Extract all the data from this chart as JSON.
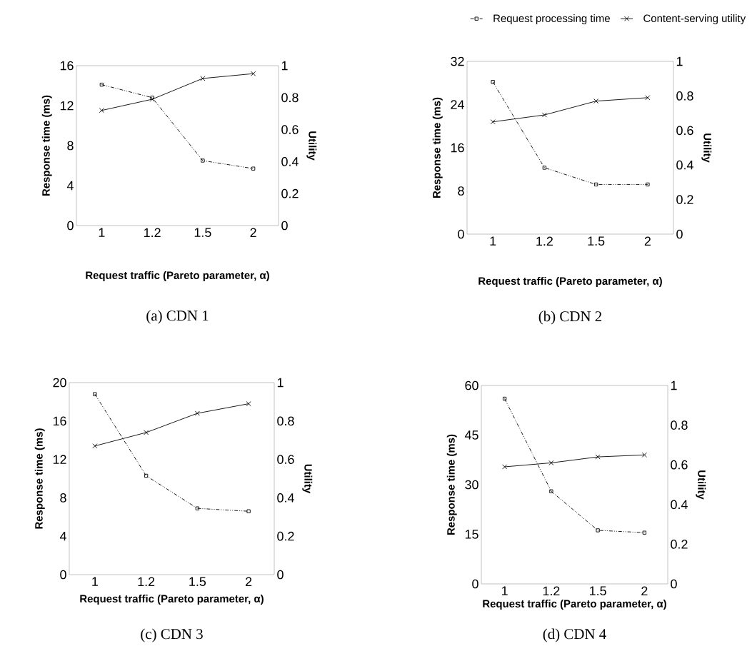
{
  "chart_data": [
    {
      "type": "line",
      "title": "(a) CDN 1",
      "xlabel": "Request traffic (Pareto parameter, α)",
      "ylabel": "Response time (ms)",
      "y2label": "Utility",
      "categories": [
        "1",
        "1.2",
        "1.5",
        "2"
      ],
      "ylim": [
        0,
        16
      ],
      "yticks": [
        0,
        4,
        8,
        12,
        16
      ],
      "y2lim": [
        0,
        1
      ],
      "y2ticks": [
        0,
        0.2,
        0.4,
        0.6,
        0.8,
        1
      ],
      "legend": "top right",
      "series": [
        {
          "name": "Request processing time",
          "color": "#000000",
          "marker": "square",
          "line_style": "dashed",
          "values": [
            14.1,
            12.8,
            6.5,
            5.7
          ]
        },
        {
          "name": "Content-serving utility",
          "color": "#000000",
          "marker": "cross",
          "line_style": "solid",
          "axis": "y2",
          "values": [
            0.72,
            0.79,
            0.92,
            0.95
          ]
        }
      ]
    },
    {
      "type": "line",
      "title": "(b) CDN 2",
      "xlabel": "Request traffic (Pareto parameter, α)",
      "ylabel": "Response time (ms)",
      "y2label": "Utility",
      "categories": [
        "1",
        "1.2",
        "1.5",
        "2"
      ],
      "ylim": [
        0,
        32
      ],
      "yticks": [
        0,
        8,
        16,
        24,
        32
      ],
      "y2lim": [
        0,
        1
      ],
      "y2ticks": [
        0,
        0.2,
        0.4,
        0.6,
        0.8,
        1
      ],
      "series": [
        {
          "color": "#000000",
          "marker": "square",
          "line_style": "dashed",
          "values": [
            28.2,
            12.3,
            9.2,
            9.2
          ]
        },
        {
          "color": "#000000",
          "marker": "cross",
          "line_style": "solid",
          "axis": "y2",
          "values": [
            0.65,
            0.69,
            0.77,
            0.79
          ]
        }
      ]
    },
    {
      "type": "line",
      "title": "(c) CDN 3",
      "xlabel": "Request traffic (Pareto parameter, α)",
      "ylabel": "Response time (ms)",
      "y2label": "Utility",
      "categories": [
        "1",
        "1.2",
        "1.5",
        "2"
      ],
      "ylim": [
        0,
        20
      ],
      "yticks": [
        0,
        4,
        8,
        12,
        16,
        20
      ],
      "y2lim": [
        0,
        1
      ],
      "y2ticks": [
        0,
        0.2,
        0.4,
        0.6,
        0.8,
        1
      ],
      "series": [
        {
          "color": "#000000",
          "marker": "square",
          "line_style": "dashed",
          "values": [
            18.8,
            10.3,
            6.9,
            6.6
          ]
        },
        {
          "color": "#000000",
          "marker": "cross",
          "line_style": "solid",
          "axis": "y2",
          "values": [
            0.67,
            0.74,
            0.84,
            0.89
          ]
        }
      ]
    },
    {
      "type": "line",
      "title": "(d) CDN 4",
      "xlabel": "Request traffic (Pareto parameter, α)",
      "ylabel": "Response time (ms)",
      "y2label": "Utility",
      "categories": [
        "1",
        "1.2",
        "1.5",
        "2"
      ],
      "ylim": [
        0,
        60
      ],
      "yticks": [
        0,
        15,
        30,
        45,
        60
      ],
      "y2lim": [
        0,
        1
      ],
      "y2ticks": [
        0,
        0.2,
        0.4,
        0.6,
        0.8,
        1
      ],
      "series": [
        {
          "color": "#000000",
          "marker": "square",
          "line_style": "dashed",
          "values": [
            56,
            28,
            16.2,
            15.5
          ]
        },
        {
          "color": "#000000",
          "marker": "cross",
          "line_style": "solid",
          "axis": "y2",
          "values": [
            0.59,
            0.61,
            0.64,
            0.65
          ]
        }
      ]
    }
  ]
}
